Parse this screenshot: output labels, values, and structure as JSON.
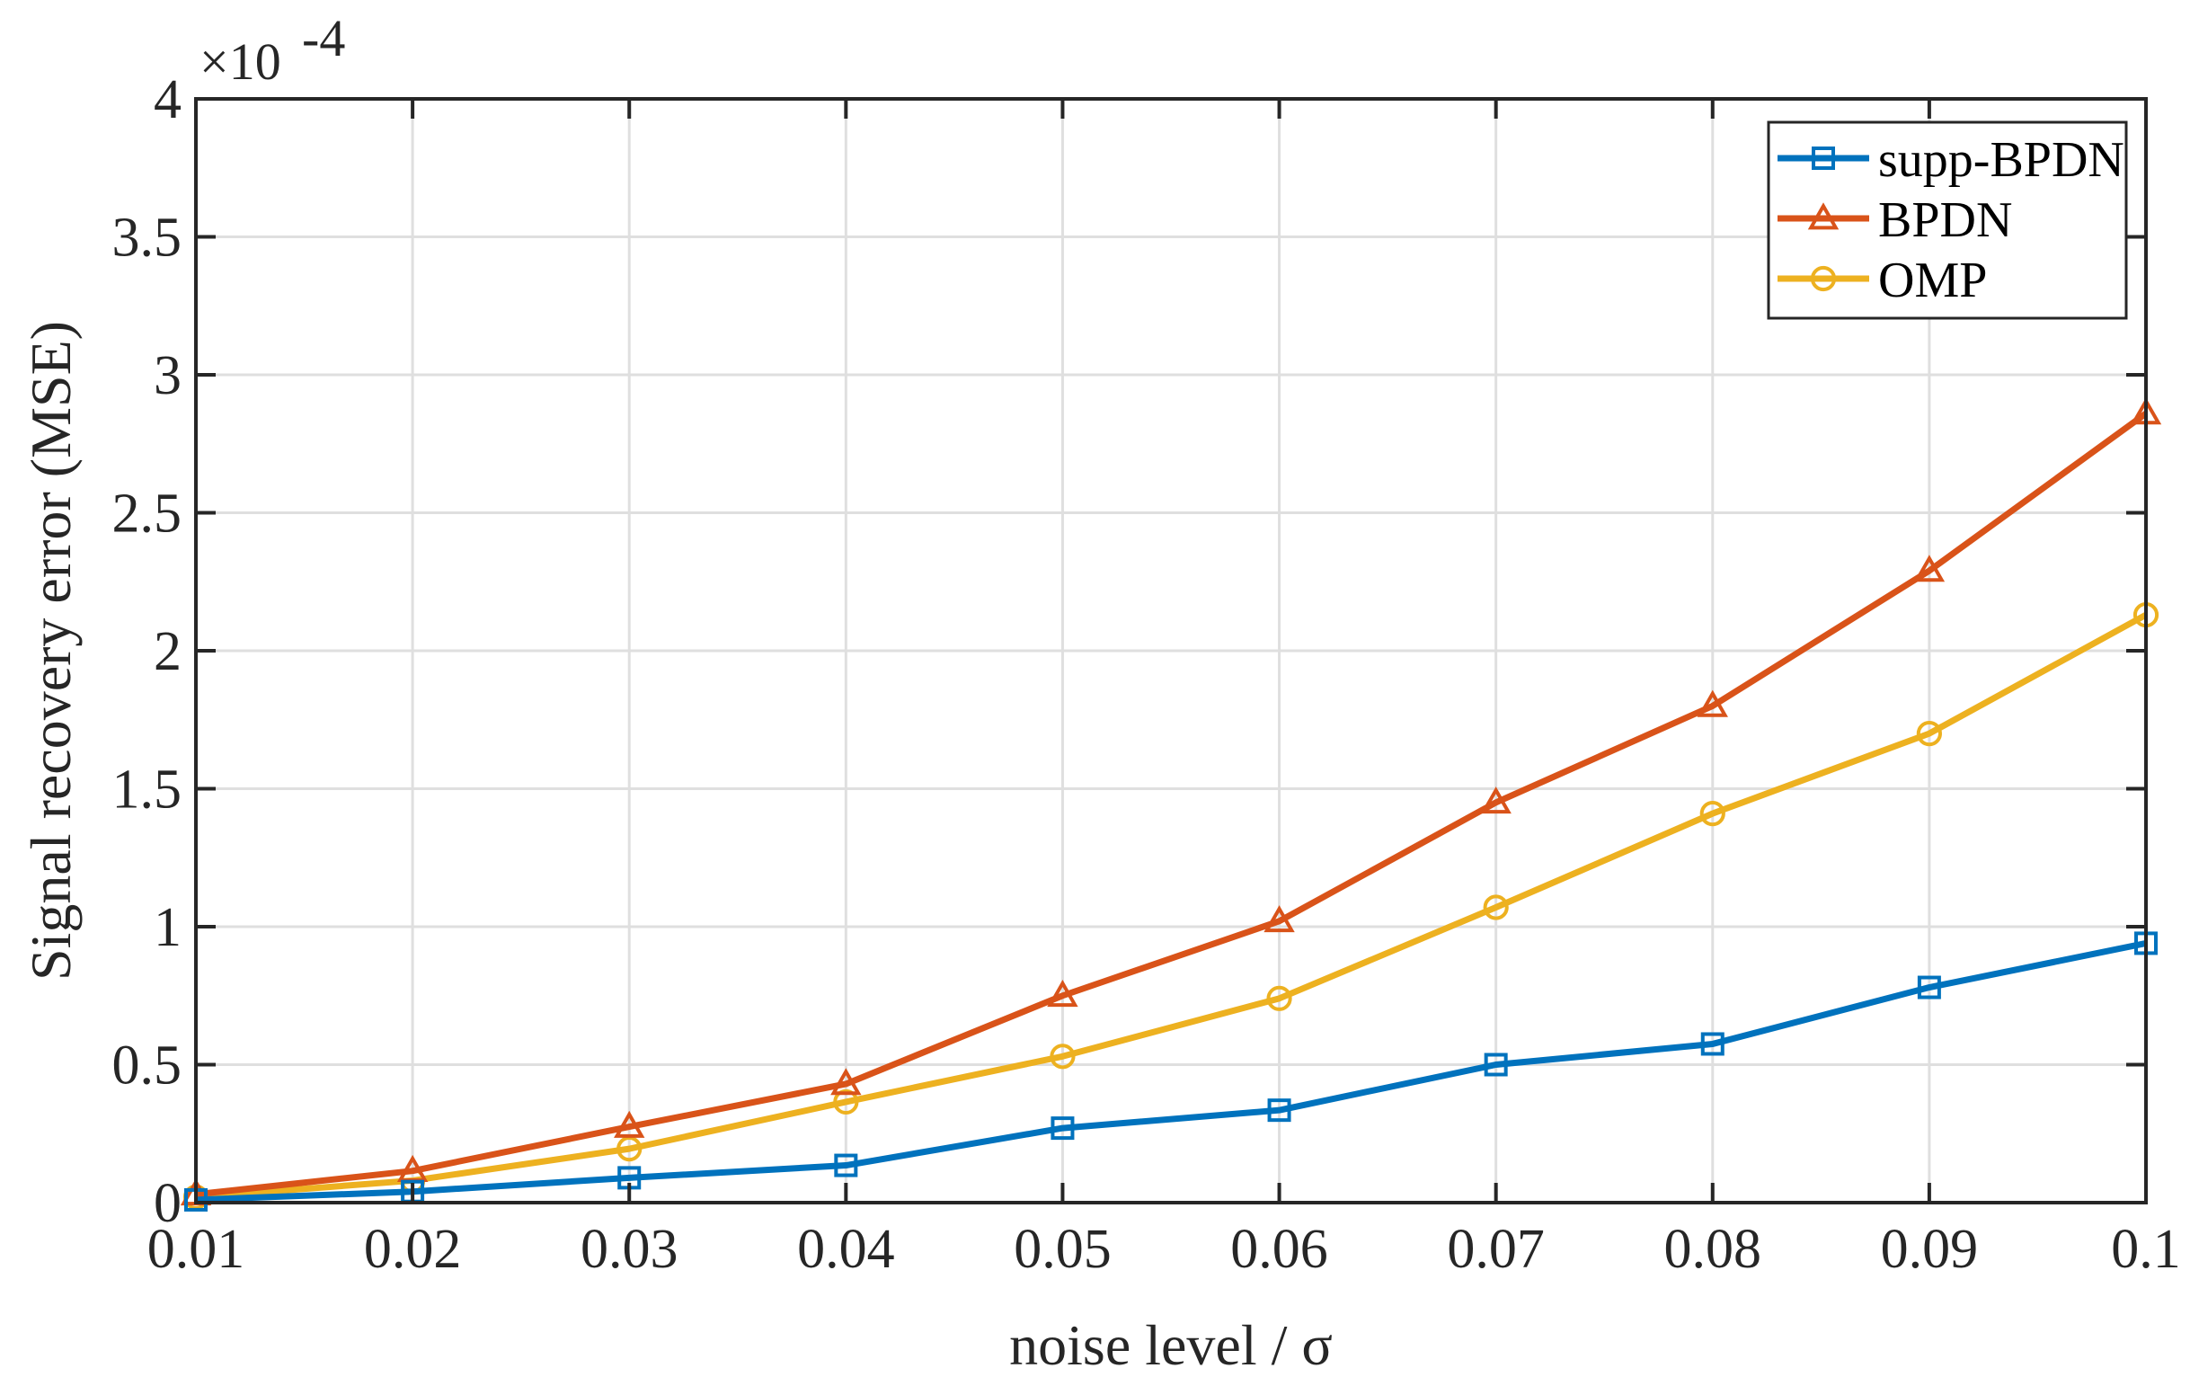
{
  "chart_data": {
    "type": "line",
    "title": "",
    "xlabel": "noise level / σ",
    "ylabel": "Signal recovery error (MSE)",
    "y_multiplier_label": {
      "base": "×10",
      "exponent": "-4"
    },
    "x": [
      0.01,
      0.02,
      0.03,
      0.04,
      0.05,
      0.06,
      0.07,
      0.08,
      0.09,
      0.1
    ],
    "xlim": [
      0.01,
      0.1
    ],
    "ylim": [
      0,
      4
    ],
    "x_ticks": [
      "0.01",
      "0.02",
      "0.03",
      "0.04",
      "0.05",
      "0.06",
      "0.07",
      "0.08",
      "0.09",
      "0.1"
    ],
    "x_tick_values": [
      0.01,
      0.02,
      0.03,
      0.04,
      0.05,
      0.06,
      0.07,
      0.08,
      0.09,
      0.1
    ],
    "y_ticks": [
      "0",
      "0.5",
      "1",
      "1.5",
      "2",
      "2.5",
      "3",
      "3.5",
      "4"
    ],
    "y_tick_values": [
      0,
      0.5,
      1,
      1.5,
      2,
      2.5,
      3,
      3.5,
      4
    ],
    "grid": true,
    "legend_position": "top-right",
    "series": [
      {
        "name": "supp-BPDN",
        "color": "#0072BD",
        "marker": "square",
        "values": [
          0.01,
          0.04,
          0.09,
          0.135,
          0.27,
          0.335,
          0.5,
          0.575,
          0.78,
          0.94
        ]
      },
      {
        "name": "BPDN",
        "color": "#D95319",
        "marker": "triangle",
        "values": [
          0.03,
          0.115,
          0.275,
          0.43,
          0.75,
          1.02,
          1.45,
          1.8,
          2.29,
          2.86
        ]
      },
      {
        "name": "OMP",
        "color": "#EDB120",
        "marker": "circle",
        "values": [
          0.02,
          0.08,
          0.195,
          0.365,
          0.53,
          0.74,
          1.07,
          1.41,
          1.7,
          2.13
        ]
      }
    ]
  }
}
